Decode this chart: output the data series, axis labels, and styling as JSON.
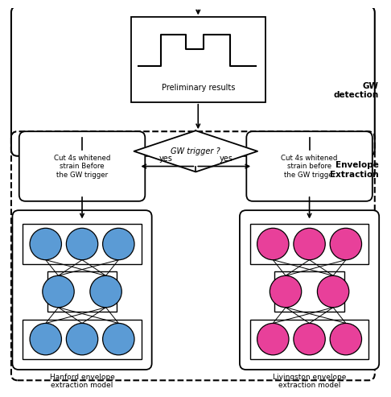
{
  "bg_color": "#ffffff",
  "gw_detection_label": "GW\ndetection",
  "envelope_extraction_label": "Envelope\nExtraction",
  "preliminary_results_label": "Preliminary results",
  "gw_trigger_label": "GW trigger ?",
  "left_box_label": "Cut 4s whitened\nstrain Before\nthe GW trigger",
  "right_box_label": "Cut 4s whitened\nstrain before\nthe GW trigger",
  "left_nn_label": "Hanford envelope\nextraction model",
  "right_nn_label": "Livingston envelope\nextraction model",
  "yes_label": "yes",
  "blue_color": "#5b9bd5",
  "pink_color": "#e8409a",
  "line_color": "#000000"
}
